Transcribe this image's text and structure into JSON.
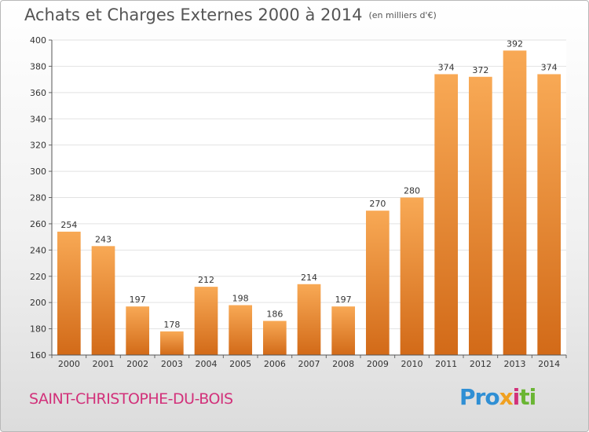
{
  "title": "Achats et Charges Externes 2000 à 2014",
  "subtitle": "(en milliers d'€)",
  "commune": "SAINT-CHRISTOPHE-DU-BOIS",
  "logo": {
    "p1": "Pro",
    "p2": "x",
    "p3": "i",
    "p4": "ti"
  },
  "colors": {
    "bar_light": "#f6a24e",
    "bar_dark": "#d9731f",
    "title": "#555555",
    "commune": "#d2317a"
  },
  "chart_data": {
    "type": "bar",
    "categories": [
      "2000",
      "2001",
      "2002",
      "2003",
      "2004",
      "2005",
      "2006",
      "2007",
      "2008",
      "2009",
      "2010",
      "2011",
      "2012",
      "2013",
      "2014"
    ],
    "values": [
      254,
      243,
      197,
      178,
      212,
      198,
      186,
      214,
      197,
      270,
      280,
      374,
      372,
      392,
      374
    ],
    "ylim": [
      160,
      400
    ],
    "yticks": [
      160,
      180,
      200,
      220,
      240,
      260,
      280,
      300,
      320,
      340,
      360,
      380,
      400
    ],
    "grid": true
  }
}
